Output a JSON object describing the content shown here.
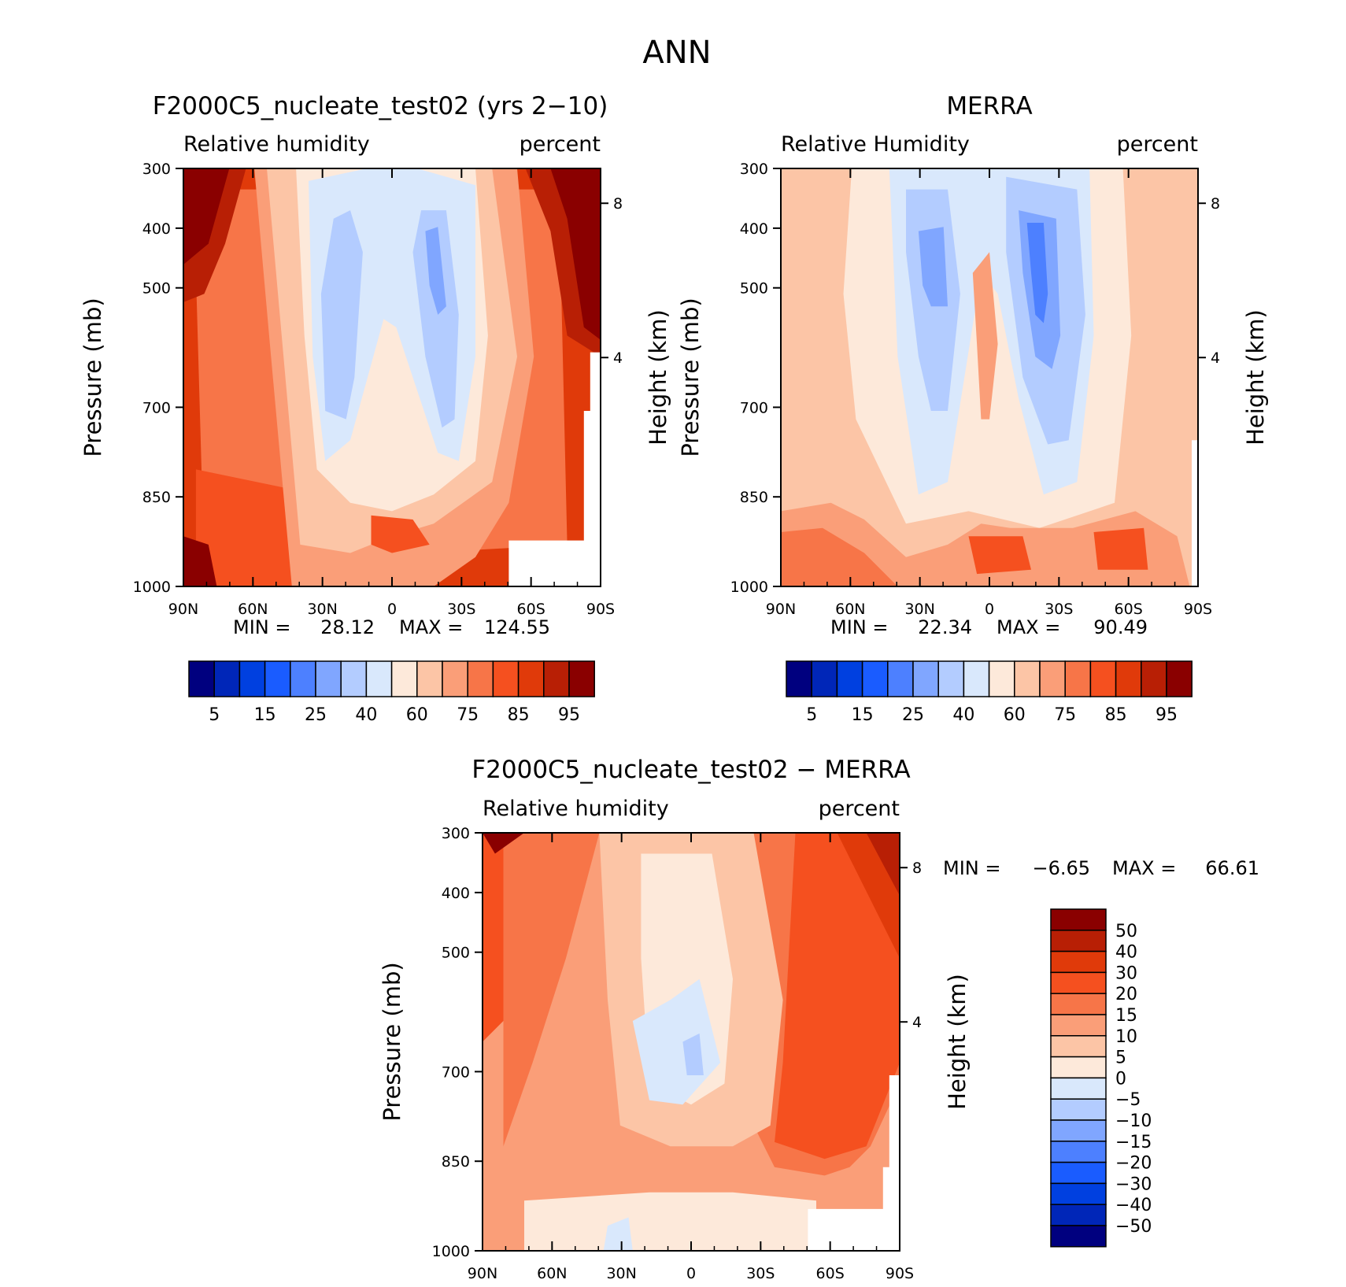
{
  "figure": {
    "title": "ANN"
  },
  "colors": {
    "rh_scale": [
      "#00007f",
      "#0026b8",
      "#0040e0",
      "#1a5cff",
      "#4d80ff",
      "#80a6ff",
      "#b3ccff",
      "#d9e8fc",
      "#fde9da",
      "#fcc5a6",
      "#fa9e78",
      "#f77548",
      "#f5501f",
      "#e03a0a",
      "#b81f05",
      "#8a0000"
    ],
    "diff_scale": [
      "#00007f",
      "#0026b8",
      "#0040e0",
      "#1a5cff",
      "#4d80ff",
      "#80a6ff",
      "#b3ccff",
      "#d9e8fc",
      "#fde9da",
      "#fcc5a6",
      "#fa9e78",
      "#f77548",
      "#f5501f",
      "#e03a0a",
      "#b81f05",
      "#8a0000"
    ],
    "missing": "#ffffff"
  },
  "chart_data": [
    {
      "id": "model",
      "type": "contour",
      "title": "F2000C5_nucleate_test02 (yrs 2−10)",
      "variable": "Relative humidity",
      "units": "percent",
      "ylabel": "Pressure (mb)",
      "ylabel_right": "Height (km)",
      "x_ticks": [
        "90N",
        "60N",
        "30N",
        "0",
        "30S",
        "60S",
        "90S"
      ],
      "y_ticks": [
        "300",
        "400",
        "500",
        "700",
        "850",
        "1000"
      ],
      "y_ticks_right": [
        "8",
        "4"
      ],
      "min_label": "MIN =",
      "min_value": "28.12",
      "max_label": "MAX =",
      "max_value": "124.55",
      "colorbar_labels": [
        "5",
        "15",
        "25",
        "40",
        "60",
        "75",
        "85",
        "95"
      ],
      "approx_field_levels": {
        "300mb": {
          "90N": 100,
          "60N": 85,
          "30N": 60,
          "0": 55,
          "30S": 55,
          "60S": 80,
          "90S": 100
        },
        "500mb": {
          "90N": 95,
          "60N": 80,
          "30N": 40,
          "0": 55,
          "30S": 30,
          "60S": 80,
          "90S": 100
        },
        "700mb": {
          "90N": 85,
          "60N": 80,
          "30N": 40,
          "0": 60,
          "30S": 35,
          "60S": 80,
          "90S": 85
        },
        "1000mb": {
          "90N": 95,
          "60N": 85,
          "30N": 75,
          "0": 80,
          "30S": 75,
          "60S": null,
          "90S": null
        }
      }
    },
    {
      "id": "obs",
      "type": "contour",
      "title": "MERRA",
      "variable": "Relative Humidity",
      "units": "percent",
      "ylabel": "Pressure (mb)",
      "ylabel_right": "Height (km)",
      "x_ticks": [
        "90N",
        "60N",
        "30N",
        "0",
        "30S",
        "60S",
        "90S"
      ],
      "y_ticks": [
        "300",
        "400",
        "500",
        "700",
        "850",
        "1000"
      ],
      "y_ticks_right": [
        "8",
        "4"
      ],
      "min_label": "MIN =",
      "min_value": "22.34",
      "max_label": "MAX =",
      "max_value": "90.49",
      "colorbar_labels": [
        "5",
        "15",
        "25",
        "40",
        "60",
        "75",
        "85",
        "95"
      ],
      "approx_field_levels": {
        "300mb": {
          "90N": 60,
          "60N": 65,
          "30N": 55,
          "0": 60,
          "30S": 55,
          "60S": 65,
          "90S": 75
        },
        "500mb": {
          "90N": 65,
          "60N": 65,
          "30N": 30,
          "0": 60,
          "30S": 25,
          "60S": 65,
          "90S": 65
        },
        "700mb": {
          "90N": 65,
          "60N": 65,
          "30N": 40,
          "0": 70,
          "30S": 40,
          "60S": 60,
          "90S": 55
        },
        "1000mb": {
          "90N": 85,
          "60N": 80,
          "30N": 75,
          "0": 85,
          "30S": 80,
          "60S": 85,
          "90S": 60
        }
      }
    },
    {
      "id": "diff",
      "type": "contour",
      "title": "F2000C5_nucleate_test02 − MERRA",
      "variable": "Relative humidity",
      "units": "percent",
      "ylabel": "Pressure (mb)",
      "ylabel_right": "Height (km)",
      "x_ticks": [
        "90N",
        "60N",
        "30N",
        "0",
        "30S",
        "60S",
        "90S"
      ],
      "y_ticks": [
        "300",
        "400",
        "500",
        "700",
        "850",
        "1000"
      ],
      "y_ticks_right": [
        "8",
        "4"
      ],
      "min_label": "MIN =",
      "min_value": "−6.65",
      "max_label": "MAX =",
      "max_value": "66.61",
      "colorbar_labels": [
        "50",
        "40",
        "30",
        "20",
        "15",
        "10",
        "5",
        "0",
        "−5",
        "−10",
        "−15",
        "−20",
        "−30",
        "−40",
        "−50"
      ],
      "approx_field_levels": {
        "300mb": {
          "90N": 50,
          "60N": 20,
          "30N": 5,
          "0": 0,
          "30S": 10,
          "60S": 30,
          "90S": 60
        },
        "500mb": {
          "90N": 30,
          "60N": 15,
          "30N": 10,
          "0": 0,
          "30S": 10,
          "60S": 20,
          "90S": 40
        },
        "700mb": {
          "90N": 20,
          "60N": 15,
          "30N": -5,
          "0": -10,
          "30S": 0,
          "60S": 20,
          "90S": 30
        },
        "1000mb": {
          "90N": 10,
          "60N": 5,
          "30N": 0,
          "0": 0,
          "30S": 0,
          "60S": null,
          "90S": null
        }
      }
    }
  ]
}
